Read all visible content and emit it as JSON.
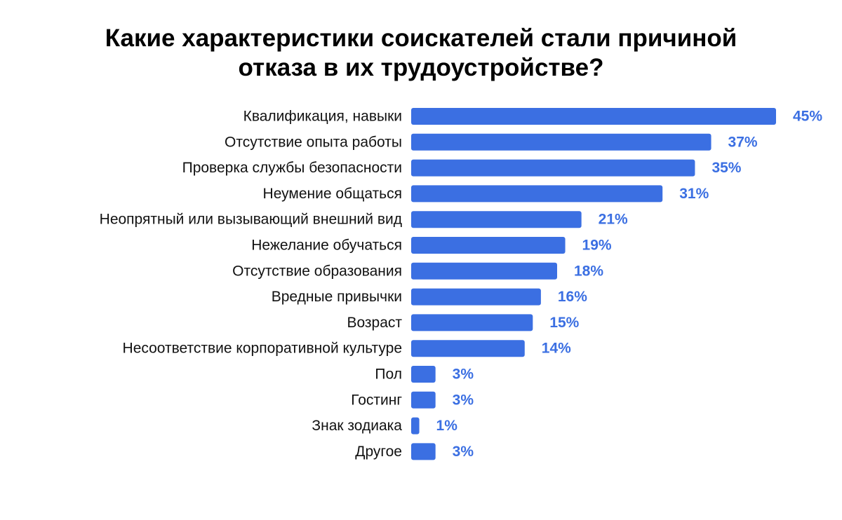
{
  "chart_data": {
    "type": "bar",
    "orientation": "horizontal",
    "title_lines": [
      "Какие характеристики соискателей стали причиной",
      "отказа в их трудоустройстве?"
    ],
    "categories": [
      "Квалификация, навыки",
      "Отсутствие опыта работы",
      "Проверка службы безопасности",
      "Неумение общаться",
      "Неопрятный или вызывающий внешний вид",
      "Нежелание обучаться",
      "Отсутствие образования",
      "Вредные привычки",
      "Возраст",
      "Несоответствие корпоративной культуре",
      "Пол",
      "Гостинг",
      "Знак зодиака",
      "Другое"
    ],
    "values": [
      45,
      37,
      35,
      31,
      21,
      19,
      18,
      16,
      15,
      14,
      3,
      3,
      1,
      3
    ],
    "value_labels": [
      "45%",
      "37%",
      "35%",
      "31%",
      "21%",
      "19%",
      "18%",
      "16%",
      "15%",
      "14%",
      "3%",
      "3%",
      "1%",
      "3%"
    ],
    "unit": "%",
    "xlim": [
      0,
      45
    ],
    "grid": false,
    "legend": "none",
    "colors": {
      "bar": "#3B6FE2",
      "value_label": "#3B6FE2",
      "category_label": "#111111",
      "title": "#000000"
    }
  }
}
